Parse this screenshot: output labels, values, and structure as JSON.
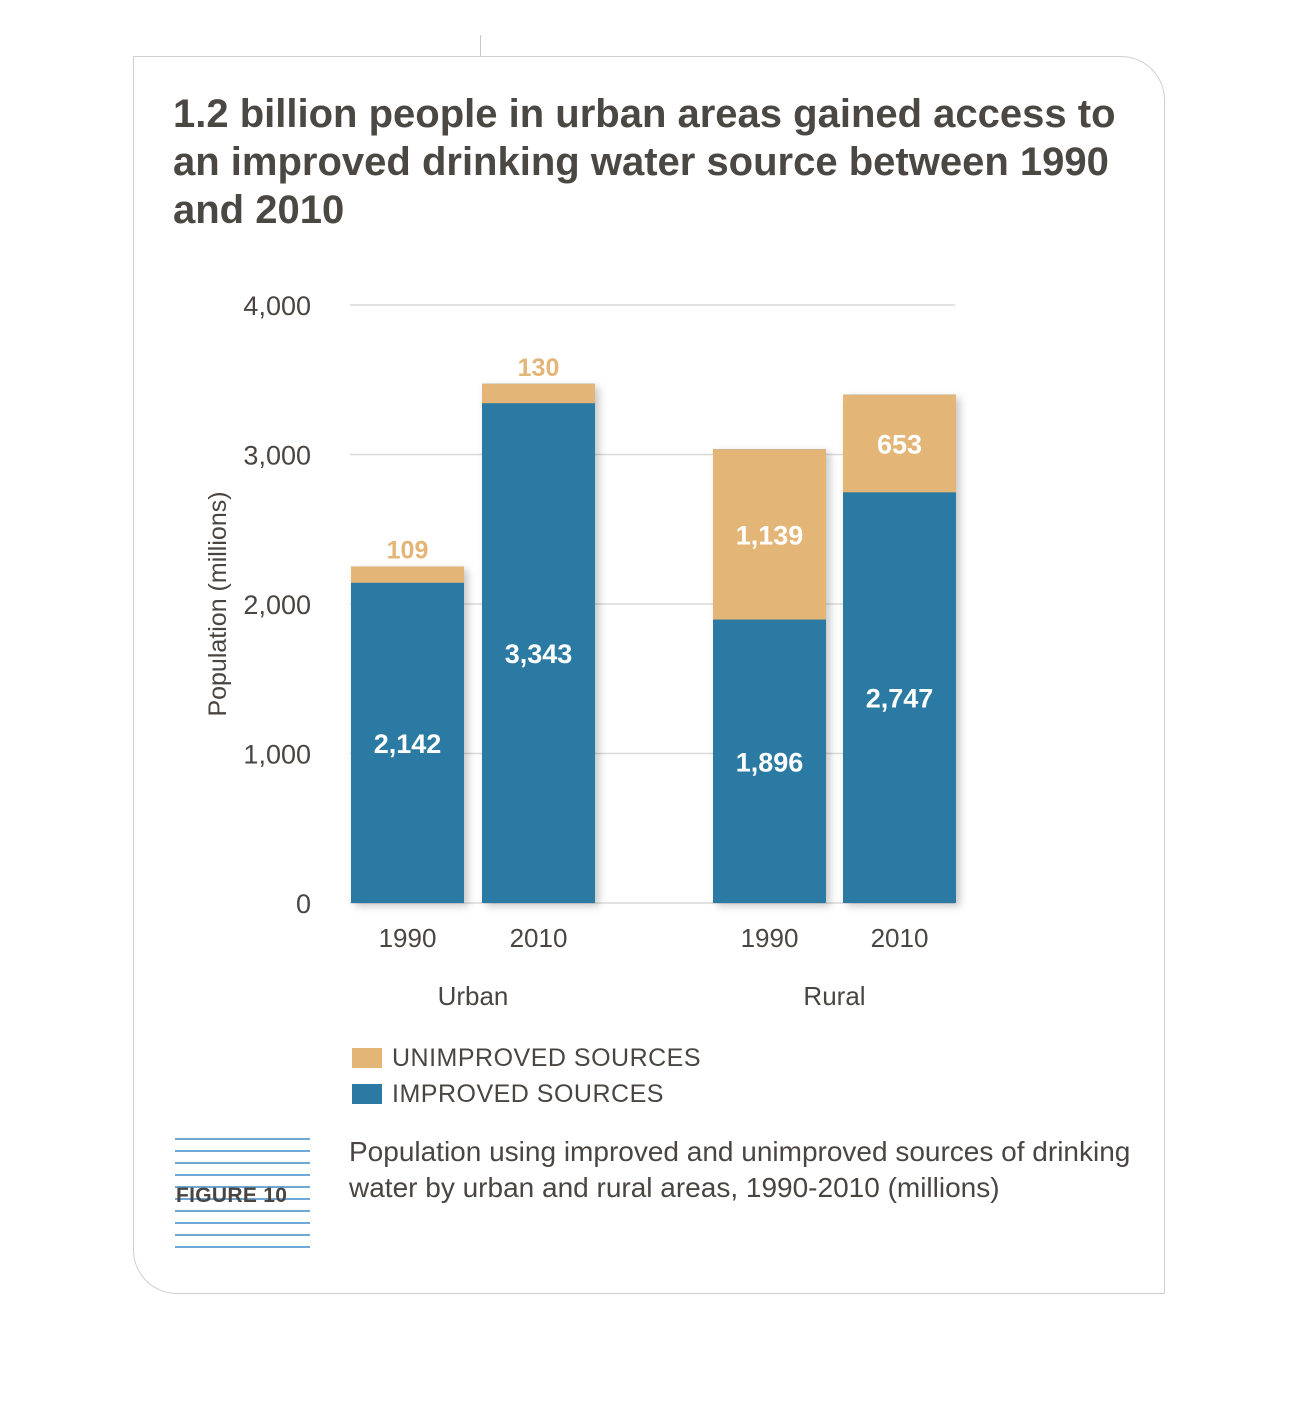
{
  "title": "1.2 billion people in urban areas gained access to an improved drinking water source between 1990 and 2010",
  "figure_label": "FIGURE 10",
  "caption": "Population using improved and unimproved sources of drinking water by urban and rural areas, 1990-2010 (millions)",
  "colors": {
    "improved": "#2a7aa3",
    "unimproved": "#e3b577",
    "grid": "#d9d9d9",
    "axis_text": "#4a4541"
  },
  "chart_data": {
    "type": "bar",
    "stacked": true,
    "ylabel": "Population (millions)",
    "ylim": [
      0,
      4000
    ],
    "yticks": [
      0,
      1000,
      2000,
      3000,
      4000
    ],
    "ytick_labels": [
      "0",
      "1,000",
      "2,000",
      "3,000",
      "4,000"
    ],
    "grid": true,
    "groups": [
      {
        "name": "Urban",
        "bars": [
          {
            "label": "1990",
            "improved": 2142,
            "unimproved": 109,
            "improved_label": "2,142",
            "unimproved_label": "109"
          },
          {
            "label": "2010",
            "improved": 3343,
            "unimproved": 130,
            "improved_label": "3,343",
            "unimproved_label": "130"
          }
        ]
      },
      {
        "name": "Rural",
        "bars": [
          {
            "label": "1990",
            "improved": 1896,
            "unimproved": 1139,
            "improved_label": "1,896",
            "unimproved_label": "1,139"
          },
          {
            "label": "2010",
            "improved": 2747,
            "unimproved": 653,
            "improved_label": "2,747",
            "unimproved_label": "653"
          }
        ]
      }
    ],
    "legend": [
      {
        "key": "unimproved",
        "label": "UNIMPROVED SOURCES"
      },
      {
        "key": "improved",
        "label": "IMPROVED SOURCES"
      }
    ]
  }
}
